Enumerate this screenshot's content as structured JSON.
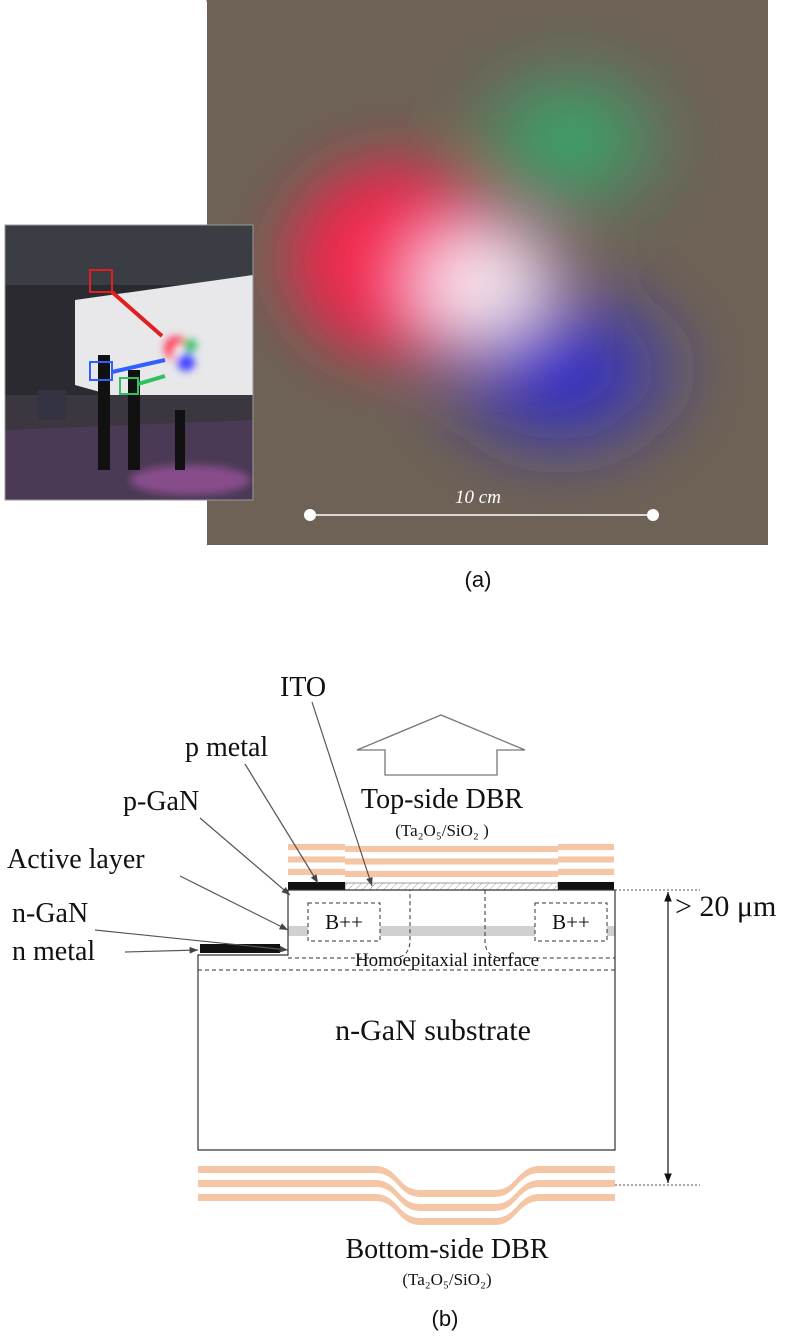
{
  "panel_a": {
    "scale_label": "10 cm",
    "caption": "(a)"
  },
  "panel_b": {
    "callouts": [
      "ITO",
      "p metal",
      "p-GaN",
      "Active layer",
      "n-GaN",
      "n metal"
    ],
    "top_dbr": {
      "name": "Top-side DBR",
      "material": "(Ta₂O₅/SiO₂ )"
    },
    "implants": [
      "B++",
      "B++"
    ],
    "thickness": "> 20 μm",
    "interface": "Homoepitaxial interface",
    "substrate": "n-GaN substrate",
    "bottom_dbr": {
      "name": "Bottom-side DBR",
      "material": "(Ta₂O₅/SiO₂)"
    },
    "caption": "(b)"
  }
}
